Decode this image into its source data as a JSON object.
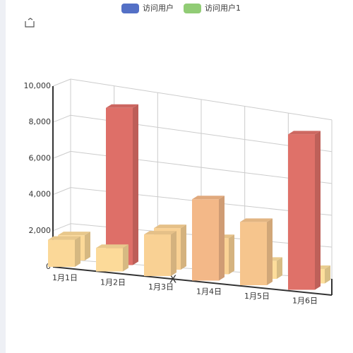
{
  "chart_data": {
    "type": "bar3d",
    "categories": [
      "1月1日",
      "1月2日",
      "1月3日",
      "1月4日",
      "1月5日",
      "1月6日"
    ],
    "series": [
      {
        "name": "访问用户",
        "color": "#5470c6",
        "values": [
          1500,
          1300,
          2300,
          4500,
          3500,
          8600
        ]
      },
      {
        "name": "访问用户1",
        "color": "#91cc75",
        "values": [
          1400,
          8700,
          2300,
          2000,
          1000,
          800
        ]
      }
    ],
    "x_label": "X",
    "ylim": [
      0,
      10000
    ],
    "yticks": [
      0,
      {
        "value": 2000,
        "label": "2,000"
      },
      {
        "value": 4000,
        "label": "4,000"
      },
      {
        "value": 6000,
        "label": "6,000"
      },
      {
        "value": 8000,
        "label": "8,000"
      },
      {
        "value": 10000,
        "label": "10,000"
      }
    ],
    "grid": true
  }
}
